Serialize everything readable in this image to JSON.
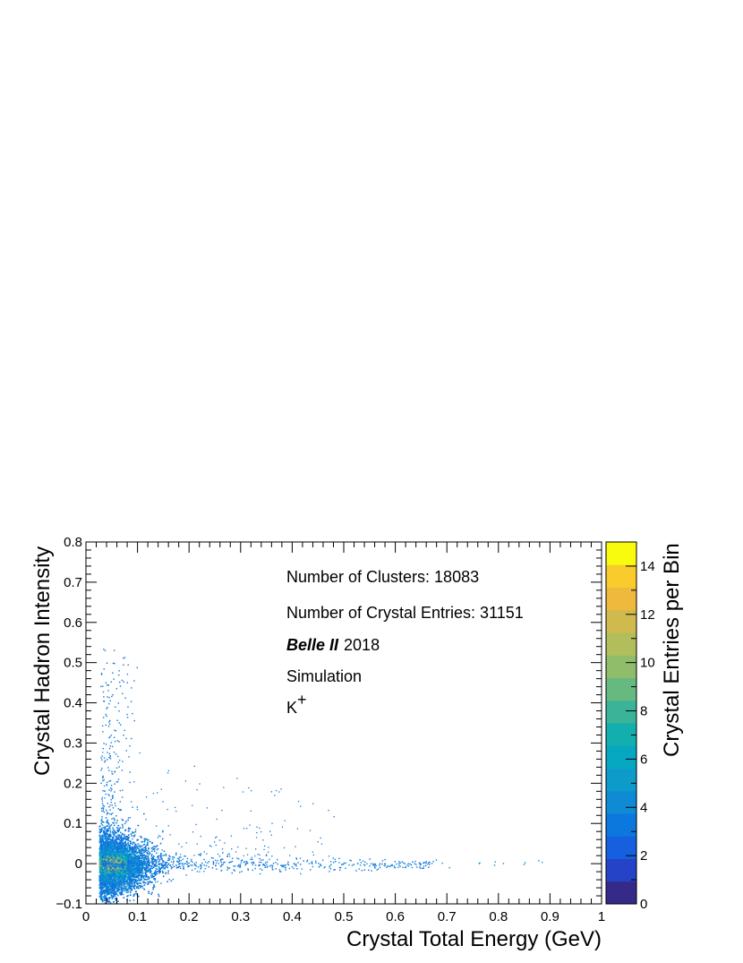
{
  "chart_data": {
    "type": "heatmap",
    "xlabel": "Crystal Total Energy (GeV)",
    "ylabel": "Crystal Hadron Intensity",
    "zlabel": "Crystal Entries per Bin",
    "xlim": [
      0,
      1
    ],
    "ylim": [
      -0.1,
      0.8
    ],
    "zlim": [
      0,
      15
    ],
    "x_ticks": [
      "0",
      "0.1",
      "0.2",
      "0.3",
      "0.4",
      "0.5",
      "0.6",
      "0.7",
      "0.8",
      "0.9",
      "1"
    ],
    "y_ticks": [
      "−0.1",
      "0",
      "0.1",
      "0.2",
      "0.3",
      "0.4",
      "0.5",
      "0.6",
      "0.7",
      "0.8"
    ],
    "z_ticks": [
      "0",
      "2",
      "4",
      "6",
      "8",
      "10",
      "12",
      "14"
    ],
    "colormap": [
      "#352a87",
      "#2443c7",
      "#1660e0",
      "#0c78dd",
      "#0e8bd4",
      "#0d9cca",
      "#06a7c0",
      "#13aeae",
      "#3ab398",
      "#66b97f",
      "#8fbd6a",
      "#b2be5c",
      "#d1ba4d",
      "#eeb93c",
      "#f9cb2c",
      "#f9fb0e"
    ],
    "grid": false,
    "annotations": [
      "Number of Clusters: 18083",
      "Number of Crystal Entries: 31151",
      "Belle II",
      "2018",
      "Simulation",
      "K",
      "+"
    ],
    "distribution": {
      "description": "Dense core near x≈0.03–0.06, y≈0, spreading into a horizontal tail toward x≈0.9 and a vertical spread up to y≈0.55 at low x.",
      "core_x": 0.05,
      "core_y": 0.0,
      "peak_entries": 14
    }
  }
}
